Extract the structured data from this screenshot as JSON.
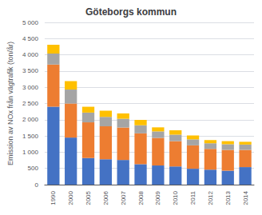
{
  "chart_data": {
    "type": "bar",
    "title": "Göteborgs kommun",
    "ylabel": "Emission av NOx från vägtrafik (ton/år)",
    "categories": [
      "1990",
      "2000",
      "2005",
      "2006",
      "2007",
      "2008",
      "2009",
      "2010",
      "2011",
      "2012",
      "2013",
      "2014"
    ],
    "stacked": true,
    "series": [
      {
        "color": "#4472C4",
        "values": [
          2400,
          1450,
          820,
          780,
          760,
          630,
          590,
          560,
          490,
          460,
          430,
          540
        ]
      },
      {
        "color": "#ED7D31",
        "values": [
          1300,
          1050,
          1100,
          1020,
          1000,
          950,
          850,
          780,
          720,
          640,
          640,
          530
        ]
      },
      {
        "color": "#A5A5A5",
        "values": [
          340,
          430,
          300,
          290,
          270,
          250,
          200,
          200,
          185,
          175,
          175,
          165
        ]
      },
      {
        "color": "#FFC000",
        "values": [
          270,
          260,
          180,
          190,
          165,
          165,
          125,
          135,
          120,
          100,
          95,
          85
        ]
      }
    ],
    "ylim": [
      0,
      5000
    ],
    "yticks": [
      0,
      500,
      {
        "value": 1000,
        "label": "1 000"
      },
      {
        "value": 1500,
        "label": "1 500"
      },
      {
        "value": 2000,
        "label": "2 000"
      },
      {
        "value": 2500,
        "label": "2 500"
      },
      {
        "value": 3000,
        "label": "3 000"
      },
      {
        "value": 3500,
        "label": "3 500"
      },
      {
        "value": 4000,
        "label": "4 000"
      },
      {
        "value": 4500,
        "label": "4 500"
      },
      {
        "value": 5000,
        "label": "5 000"
      }
    ],
    "grid": true
  }
}
